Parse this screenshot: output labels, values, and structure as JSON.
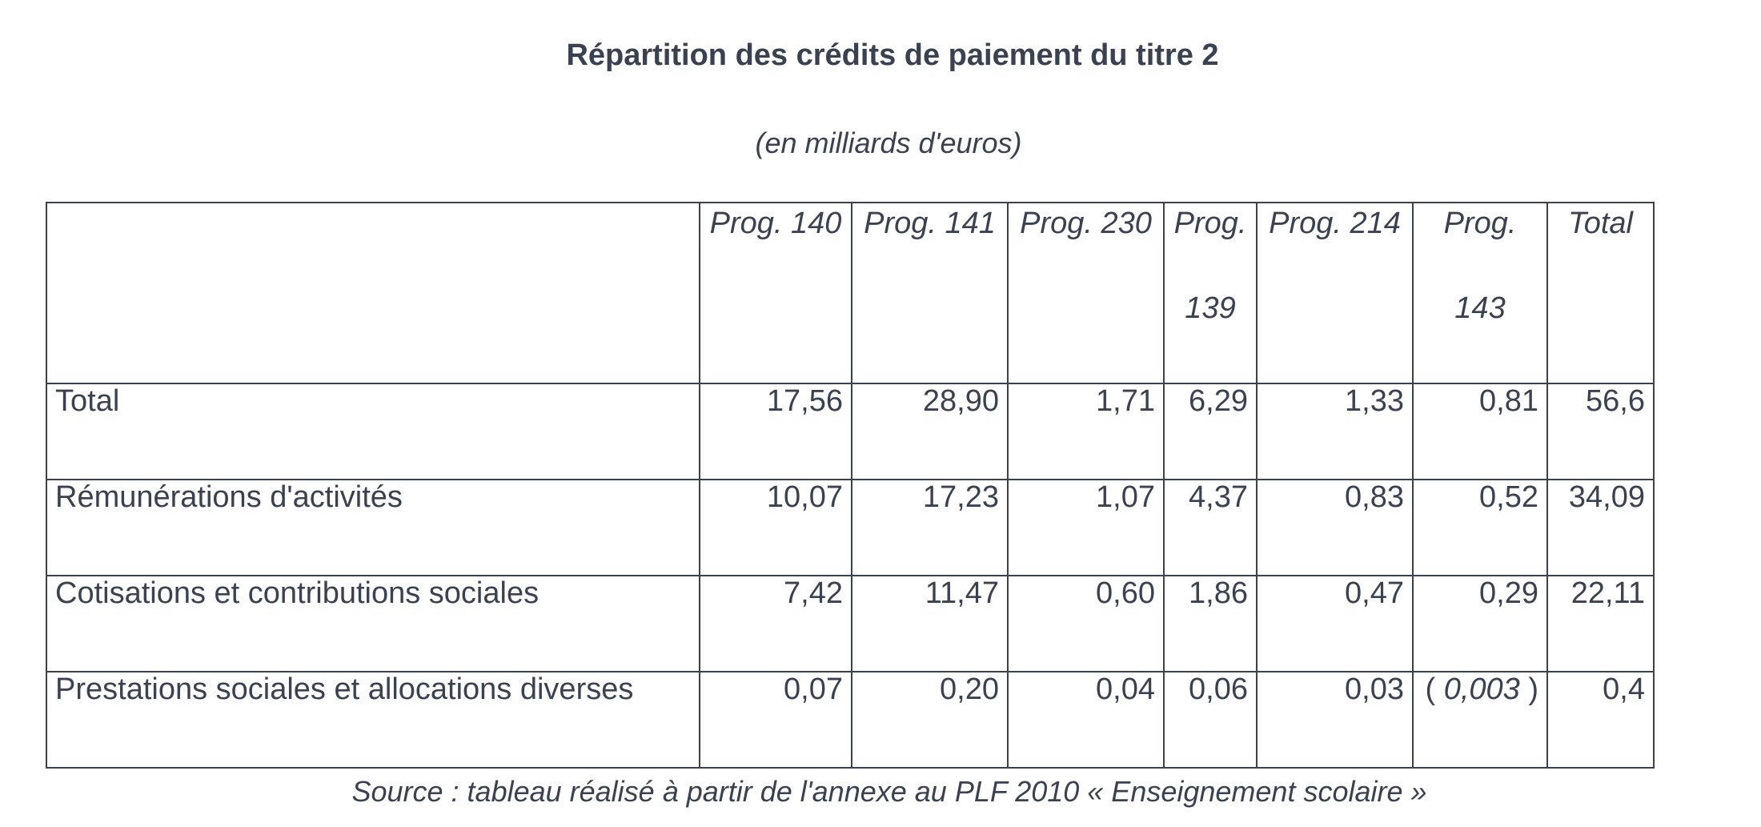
{
  "title": "Répartition des crédits de paiement du titre 2",
  "unit": "(en milliards d'euros)",
  "table": {
    "headers": [
      {
        "line1": "",
        "line2": ""
      },
      {
        "line1": "Prog. 140",
        "line2": ""
      },
      {
        "line1": "Prog. 141",
        "line2": ""
      },
      {
        "line1": "Prog. 230",
        "line2": ""
      },
      {
        "line1": "Prog.",
        "line2": "139"
      },
      {
        "line1": "Prog. 214",
        "line2": ""
      },
      {
        "line1": "Prog.",
        "line2": "143"
      },
      {
        "line1": "Total",
        "line2": ""
      }
    ],
    "rows": [
      {
        "label": "Total",
        "values": [
          "17,56",
          "28,90",
          "1,71",
          "6,29",
          "1,33",
          "0,81",
          "56,6"
        ]
      },
      {
        "label": "Rémunérations d'activités",
        "values": [
          "10,07",
          "17,23",
          "1,07",
          "4,37",
          "0,83",
          "0,52",
          "34,09"
        ]
      },
      {
        "label": "Cotisations et contributions sociales",
        "values": [
          "7,42",
          "11,47",
          "0,60",
          "1,86",
          "0,47",
          "0,29",
          "22,11"
        ]
      },
      {
        "label": "Prestations sociales et allocations diverses",
        "values": [
          "0,07",
          "0,20",
          "0,04",
          "0,06",
          "0,03",
          "0,003",
          "0,4"
        ]
      }
    ],
    "paren_open": "( ",
    "paren_close": " )"
  },
  "source": "Source : tableau réalisé à partir de l'annexe au PLF 2010 « Enseignement scolaire »"
}
